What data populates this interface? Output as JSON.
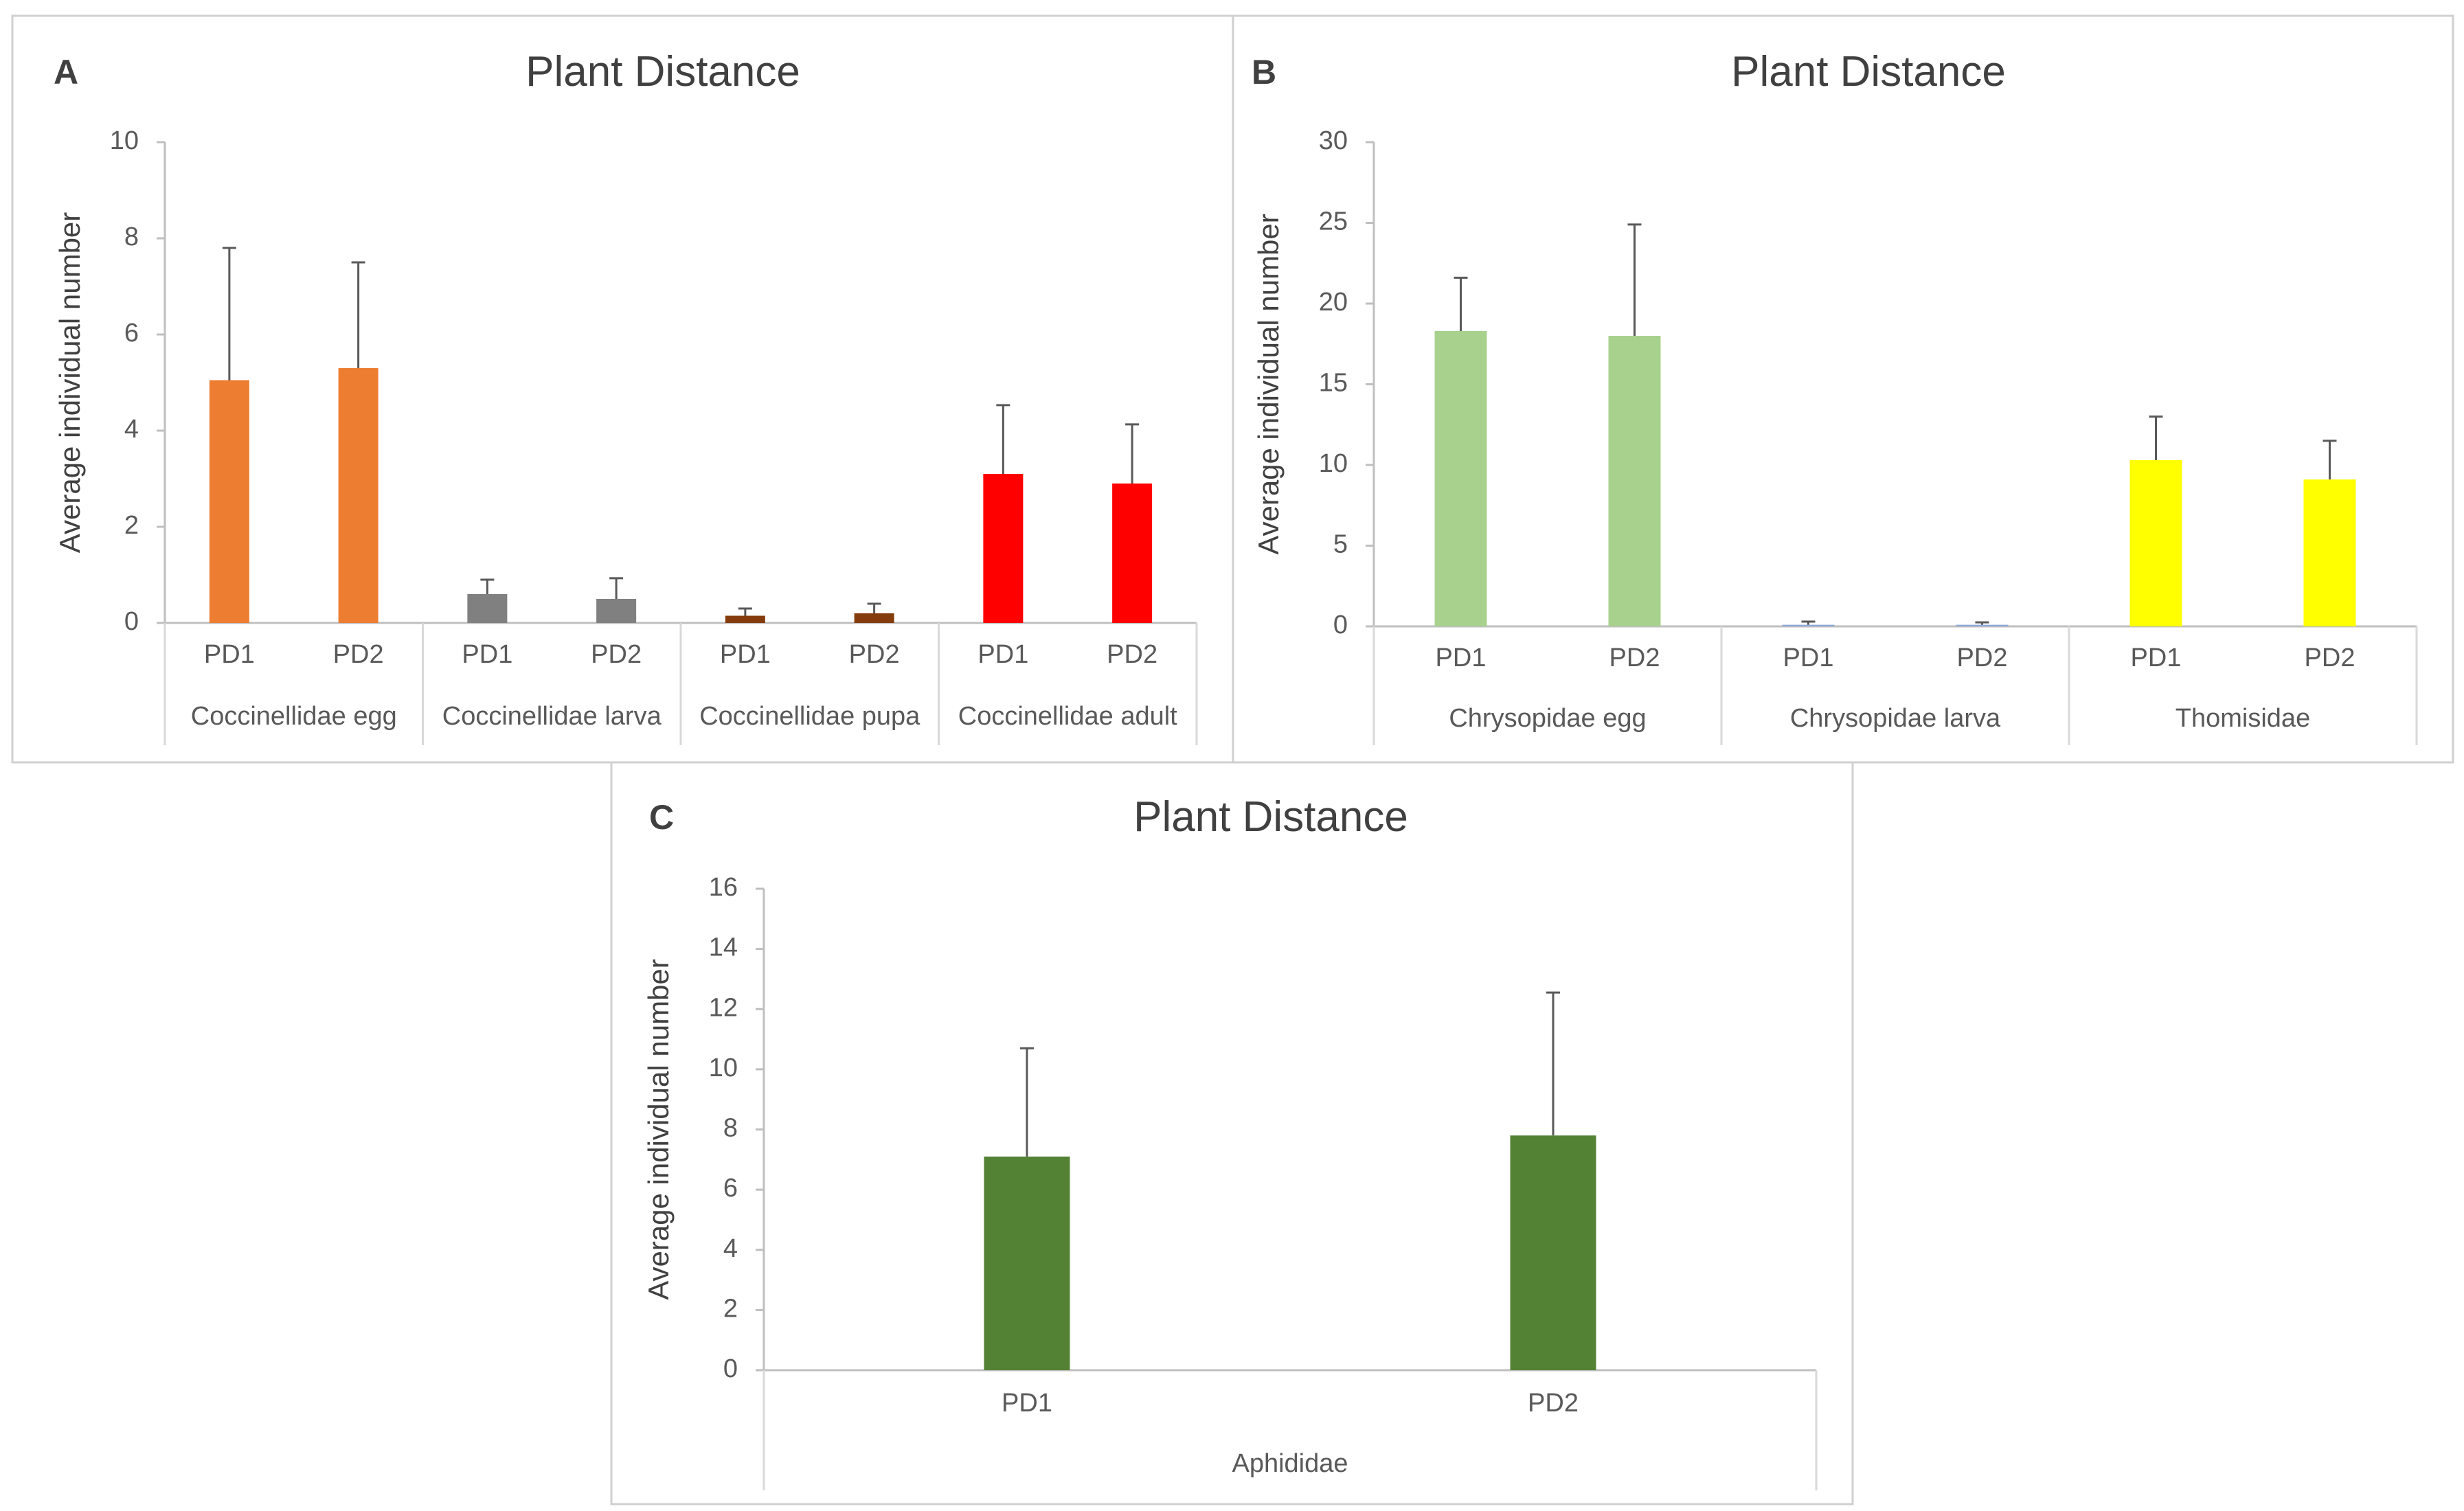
{
  "chart_data": [
    {
      "panel_label": "A",
      "type": "bar",
      "title": "Plant Distance",
      "ylabel": "Average individual number",
      "ylim": [
        0,
        10
      ],
      "yticks": [
        0,
        2,
        4,
        6,
        8,
        10
      ],
      "groups": [
        {
          "name": "Coccinellidae egg",
          "color": "#ED7D31",
          "bars": [
            {
              "label": "PD1",
              "value": 5.05,
              "error": 2.75
            },
            {
              "label": "PD2",
              "value": 5.3,
              "error": 2.2
            }
          ]
        },
        {
          "name": "Coccinellidae larva",
          "color": "#808080",
          "bars": [
            {
              "label": "PD1",
              "value": 0.6,
              "error": 0.3
            },
            {
              "label": "PD2",
              "value": 0.5,
              "error": 0.43
            }
          ]
        },
        {
          "name": "Coccinellidae pupa",
          "color": "#843C0C",
          "bars": [
            {
              "label": "PD1",
              "value": 0.15,
              "error": 0.15
            },
            {
              "label": "PD2",
              "value": 0.2,
              "error": 0.2
            }
          ]
        },
        {
          "name": "Coccinellidae adult",
          "color": "#FF0000",
          "bars": [
            {
              "label": "PD1",
              "value": 3.1,
              "error": 1.43
            },
            {
              "label": "PD2",
              "value": 2.9,
              "error": 1.23
            }
          ]
        }
      ]
    },
    {
      "panel_label": "B",
      "type": "bar",
      "title": "Plant Distance",
      "ylabel": "Average individual number",
      "ylim": [
        0,
        30
      ],
      "yticks": [
        0,
        5,
        10,
        15,
        20,
        25,
        30
      ],
      "groups": [
        {
          "name": "Chrysopidae egg",
          "color": "#A9D18E",
          "bars": [
            {
              "label": "PD1",
              "value": 18.3,
              "error": 3.3
            },
            {
              "label": "PD2",
              "value": 18.0,
              "error": 6.9
            }
          ]
        },
        {
          "name": "Chrysopidae larva",
          "color": "#8FAADC",
          "bars": [
            {
              "label": "PD1",
              "value": 0.1,
              "error": 0.2
            },
            {
              "label": "PD2",
              "value": 0.1,
              "error": 0.15
            }
          ]
        },
        {
          "name": "Thomisidae",
          "color": "#FFFF00",
          "bars": [
            {
              "label": "PD1",
              "value": 10.3,
              "error": 2.7
            },
            {
              "label": "PD2",
              "value": 9.1,
              "error": 2.4
            }
          ]
        }
      ]
    },
    {
      "panel_label": "C",
      "type": "bar",
      "title": "Plant Distance",
      "ylabel": "Average individual number",
      "ylim": [
        0,
        16
      ],
      "yticks": [
        0,
        2,
        4,
        6,
        8,
        10,
        12,
        14,
        16
      ],
      "groups": [
        {
          "name": "Aphididae",
          "color": "#548235",
          "bars": [
            {
              "label": "PD1",
              "value": 7.1,
              "error": 3.6
            },
            {
              "label": "PD2",
              "value": 7.8,
              "error": 4.75
            }
          ]
        }
      ]
    }
  ]
}
